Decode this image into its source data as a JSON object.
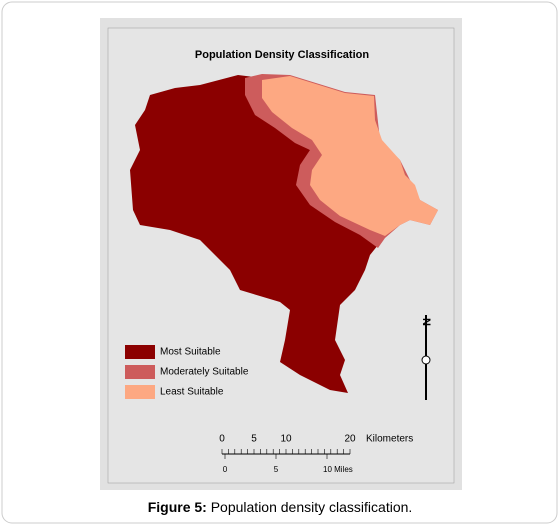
{
  "map": {
    "title": "Population Density Classification",
    "legend": [
      {
        "label": "Most Suitable",
        "color": "#8b0000"
      },
      {
        "label": "Moderately Suitable",
        "color": "#cd5c5c"
      },
      {
        "label": "Least Suitable",
        "color": "#fda882"
      }
    ],
    "north_label": "N",
    "scale_km": {
      "ticks": [
        0,
        5,
        10,
        20
      ],
      "unit": "Kilometers"
    },
    "scale_miles": {
      "ticks": [
        0,
        5,
        {
          "value": 10,
          "label": "10 Miles"
        }
      ]
    }
  },
  "caption": {
    "label": "Figure 5:",
    "text": "Population density classification."
  }
}
